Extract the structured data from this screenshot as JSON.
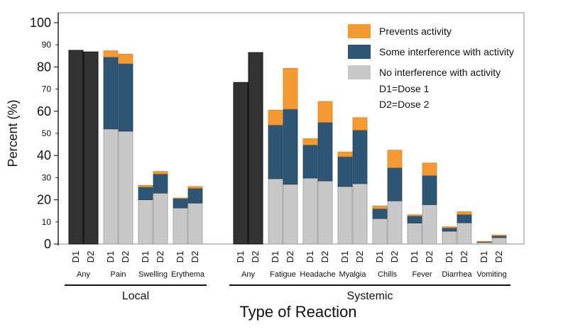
{
  "chart_data": {
    "type": "bar",
    "stacked": true,
    "xlabel": "Type of Reaction",
    "ylabel": "Percent (%)",
    "ylim": [
      0,
      100
    ],
    "yticks_major": [
      0,
      20,
      40,
      60,
      80,
      100
    ],
    "yticks_minor": [
      10,
      30,
      50,
      70,
      90
    ],
    "legend": {
      "position": "top-right",
      "entries": [
        {
          "label": "Prevents activity",
          "color": "#f49a33"
        },
        {
          "label": "Some interference with activity",
          "color": "#2f5575"
        },
        {
          "label": "No interference with activity",
          "color": "#c8c8c8"
        }
      ],
      "notes": [
        "D1=Dose 1",
        "D2=Dose 2"
      ]
    },
    "colors": {
      "any": "#333333",
      "prevents": "#f49a33",
      "some": "#2f5575",
      "none": "#c8c8c8"
    },
    "groups": [
      {
        "name": "Local",
        "categories": [
          {
            "name": "Any",
            "doses": [
              {
                "dose": "D1",
                "any": 87.5
              },
              {
                "dose": "D2",
                "any": 86.8
              }
            ]
          },
          {
            "name": "Pain",
            "doses": [
              {
                "dose": "D1",
                "none": 52.0,
                "some": 32.5,
                "prevents": 2.8
              },
              {
                "dose": "D2",
                "none": 51.0,
                "some": 30.5,
                "prevents": 4.3
              }
            ]
          },
          {
            "name": "Swelling",
            "doses": [
              {
                "dose": "D1",
                "none": 20.0,
                "some": 5.8,
                "prevents": 0.7
              },
              {
                "dose": "D2",
                "none": 23.0,
                "some": 8.7,
                "prevents": 1.1
              }
            ]
          },
          {
            "name": "Erythema",
            "doses": [
              {
                "dose": "D1",
                "none": 16.3,
                "some": 4.3,
                "prevents": 0.2
              },
              {
                "dose": "D2",
                "none": 18.5,
                "some": 6.7,
                "prevents": 0.8
              }
            ]
          }
        ]
      },
      {
        "name": "Systemic",
        "categories": [
          {
            "name": "Any",
            "doses": [
              {
                "dose": "D1",
                "any": 73.0
              },
              {
                "dose": "D2",
                "any": 86.5
              }
            ]
          },
          {
            "name": "Fatigue",
            "doses": [
              {
                "dose": "D1",
                "none": 29.5,
                "some": 24.3,
                "prevents": 6.7
              },
              {
                "dose": "D2",
                "none": 27.0,
                "some": 34.0,
                "prevents": 18.4
              }
            ]
          },
          {
            "name": "Headache",
            "doses": [
              {
                "dose": "D1",
                "none": 29.8,
                "some": 15.0,
                "prevents": 2.8
              },
              {
                "dose": "D2",
                "none": 28.5,
                "some": 26.5,
                "prevents": 9.4
              }
            ]
          },
          {
            "name": "Myalgia",
            "doses": [
              {
                "dose": "D1",
                "none": 26.0,
                "some": 13.5,
                "prevents": 2.1
              },
              {
                "dose": "D2",
                "none": 27.3,
                "some": 24.2,
                "prevents": 5.6
              }
            ]
          },
          {
            "name": "Chills",
            "doses": [
              {
                "dose": "D1",
                "none": 11.5,
                "some": 4.5,
                "prevents": 1.2
              },
              {
                "dose": "D2",
                "none": 19.5,
                "some": 15.0,
                "prevents": 7.9
              }
            ]
          },
          {
            "name": "Fever",
            "doses": [
              {
                "dose": "D1",
                "none": 9.5,
                "some": 3.2,
                "prevents": 0.5
              },
              {
                "dose": "D2",
                "none": 17.8,
                "some": 13.2,
                "prevents": 5.6
              }
            ]
          },
          {
            "name": "Diarrhea",
            "doses": [
              {
                "dose": "D1",
                "none": 5.8,
                "some": 1.5,
                "prevents": 0.5
              },
              {
                "dose": "D2",
                "none": 9.6,
                "some": 3.8,
                "prevents": 1.2
              }
            ]
          },
          {
            "name": "Vomiting",
            "doses": [
              {
                "dose": "D1",
                "none": 0.8,
                "some": 0.3,
                "prevents": 0.1
              },
              {
                "dose": "D2",
                "none": 2.9,
                "some": 0.8,
                "prevents": 0.4
              }
            ]
          }
        ]
      }
    ]
  }
}
